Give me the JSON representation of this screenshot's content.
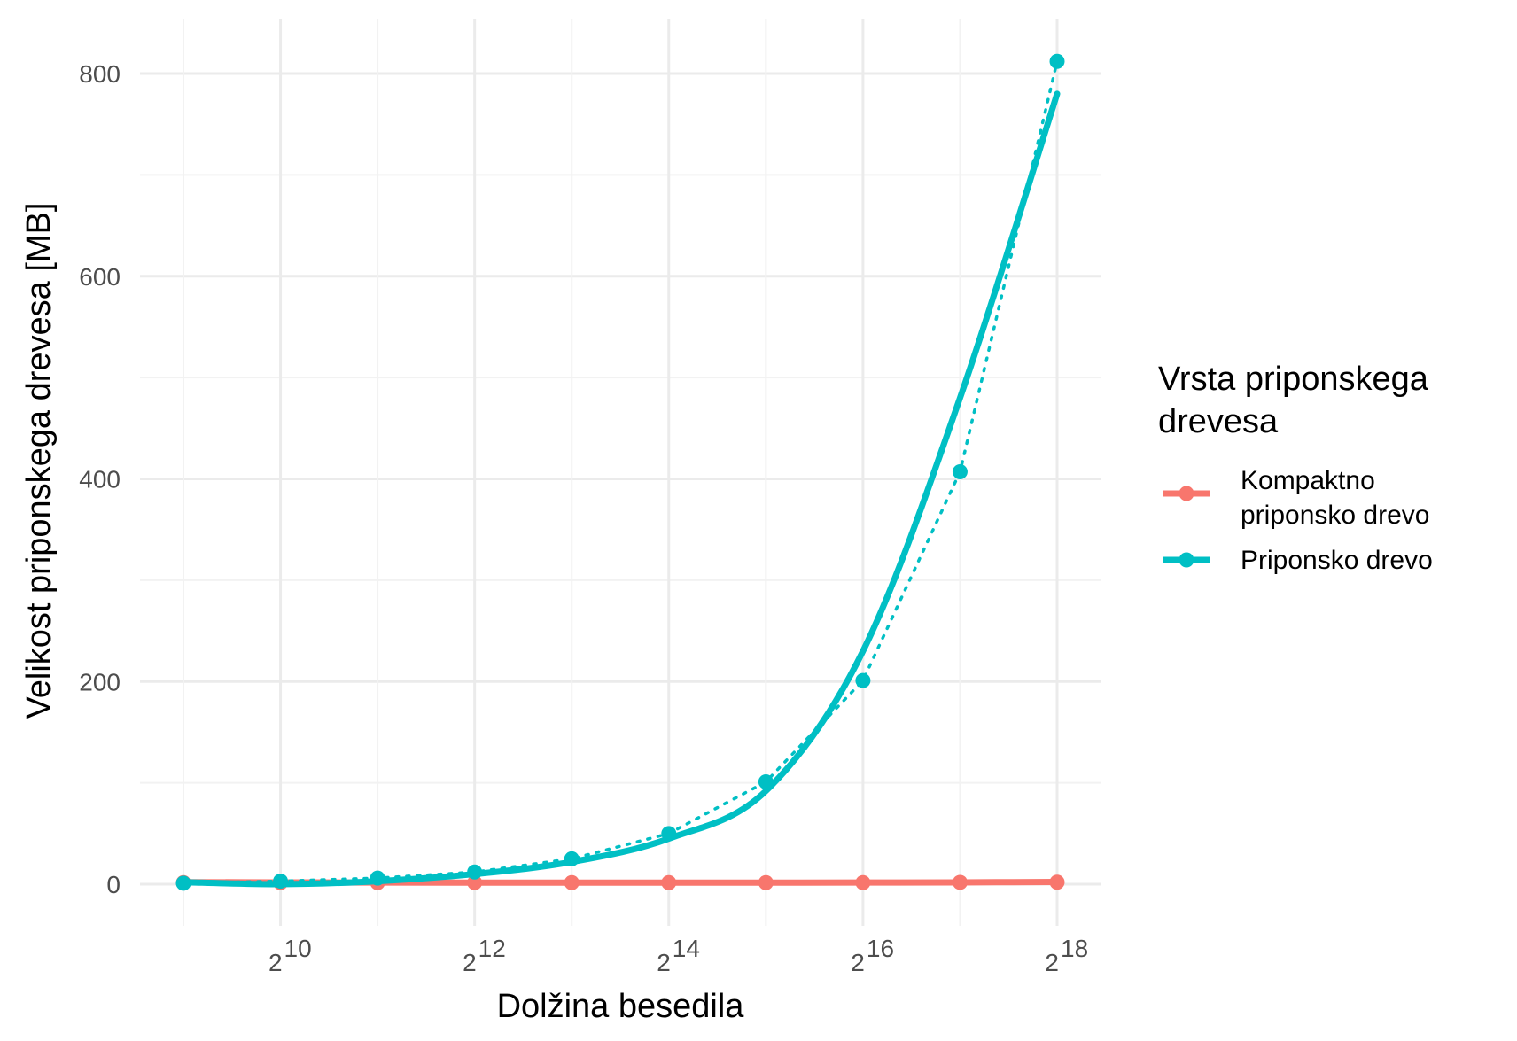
{
  "chart_data": {
    "type": "line",
    "xlabel": "Dolžina besedila",
    "ylabel": "Velikost priponskega drevesa [MB]",
    "x_scale": "log2",
    "x": [
      512,
      1024,
      2048,
      4096,
      8192,
      16384,
      32768,
      65536,
      131072,
      262144
    ],
    "x_ticks": [
      {
        "base": "2",
        "exp": "10",
        "value": 1024
      },
      {
        "base": "2",
        "exp": "12",
        "value": 4096
      },
      {
        "base": "2",
        "exp": "14",
        "value": 16384
      },
      {
        "base": "2",
        "exp": "16",
        "value": 65536
      },
      {
        "base": "2",
        "exp": "18",
        "value": 262144
      }
    ],
    "y_ticks": [
      "0",
      "200",
      "400",
      "600",
      "800"
    ],
    "ylim": [
      -45,
      843
    ],
    "grid": true,
    "legend": {
      "title_lines": [
        "Vrsta priponskega",
        "drevesa"
      ],
      "position": "right"
    },
    "series": [
      {
        "name": "Kompaktno priponsko drevo",
        "name_lines": [
          "Kompaktno",
          "priponsko drevo"
        ],
        "color": "#F8766D",
        "values": [
          1.5,
          1.5,
          1.5,
          1.5,
          1.5,
          1.5,
          1.5,
          1.5,
          1.8,
          2.0
        ],
        "trend": [
          2.0,
          1.8,
          1.6,
          1.5,
          1.5,
          1.5,
          1.5,
          1.6,
          1.8,
          2.2
        ]
      },
      {
        "name": "Priponsko drevo",
        "name_lines": [
          "Priponsko drevo"
        ],
        "color": "#00BFC4",
        "values": [
          1,
          3,
          6,
          12,
          25,
          50,
          101,
          201,
          407,
          812
        ],
        "smooth": [
          2,
          0,
          3,
          10,
          22,
          45,
          92,
          230,
          480,
          780
        ]
      }
    ]
  }
}
